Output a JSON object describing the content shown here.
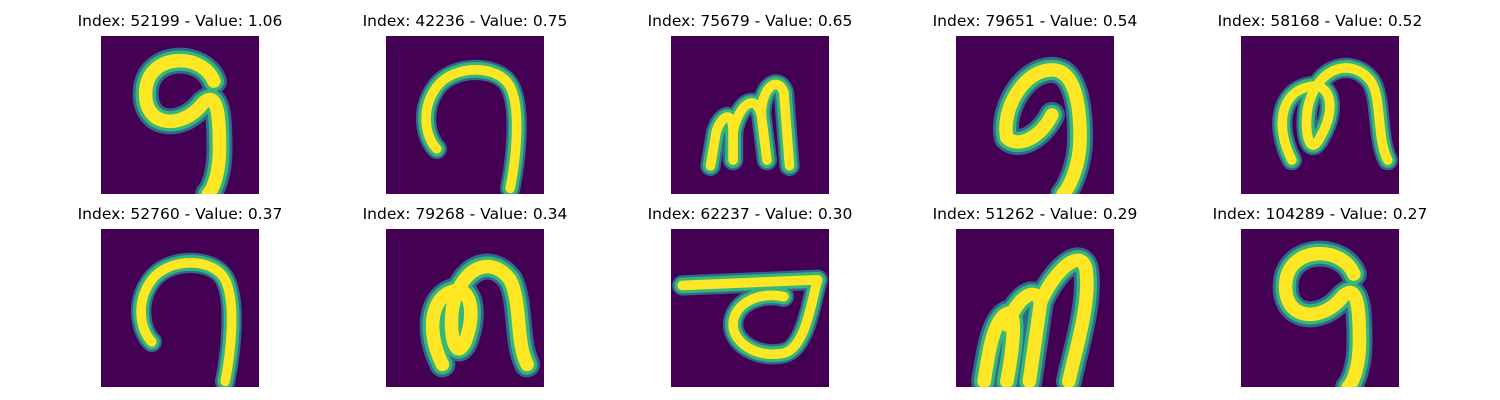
{
  "colors": {
    "background": "#440154",
    "low": "#31688e",
    "mid": "#35b779",
    "high": "#fde725"
  },
  "panels": [
    {
      "title": "Index: 52199 - Value: 1.06",
      "glyph": "curl-9-thick"
    },
    {
      "title": "Index: 42236 - Value: 0.75",
      "glyph": "curl-9-thin"
    },
    {
      "title": "Index: 75679 - Value: 0.65",
      "glyph": "m-shape"
    },
    {
      "title": "Index: 79651 - Value: 0.54",
      "glyph": "curl-9-bold"
    },
    {
      "title": "Index: 58168 - Value: 0.52",
      "glyph": "loop-n"
    },
    {
      "title": "Index: 52760 - Value: 0.37",
      "glyph": "curl-9-thin"
    },
    {
      "title": "Index: 79268 - Value: 0.34",
      "glyph": "loop-n-bold"
    },
    {
      "title": "Index: 62237 - Value: 0.30",
      "glyph": "loop-horizontal"
    },
    {
      "title": "Index: 51262 - Value: 0.29",
      "glyph": "m-shape-bold"
    },
    {
      "title": "Index: 104289 - Value: 0.27",
      "glyph": "curl-9-thick"
    }
  ]
}
